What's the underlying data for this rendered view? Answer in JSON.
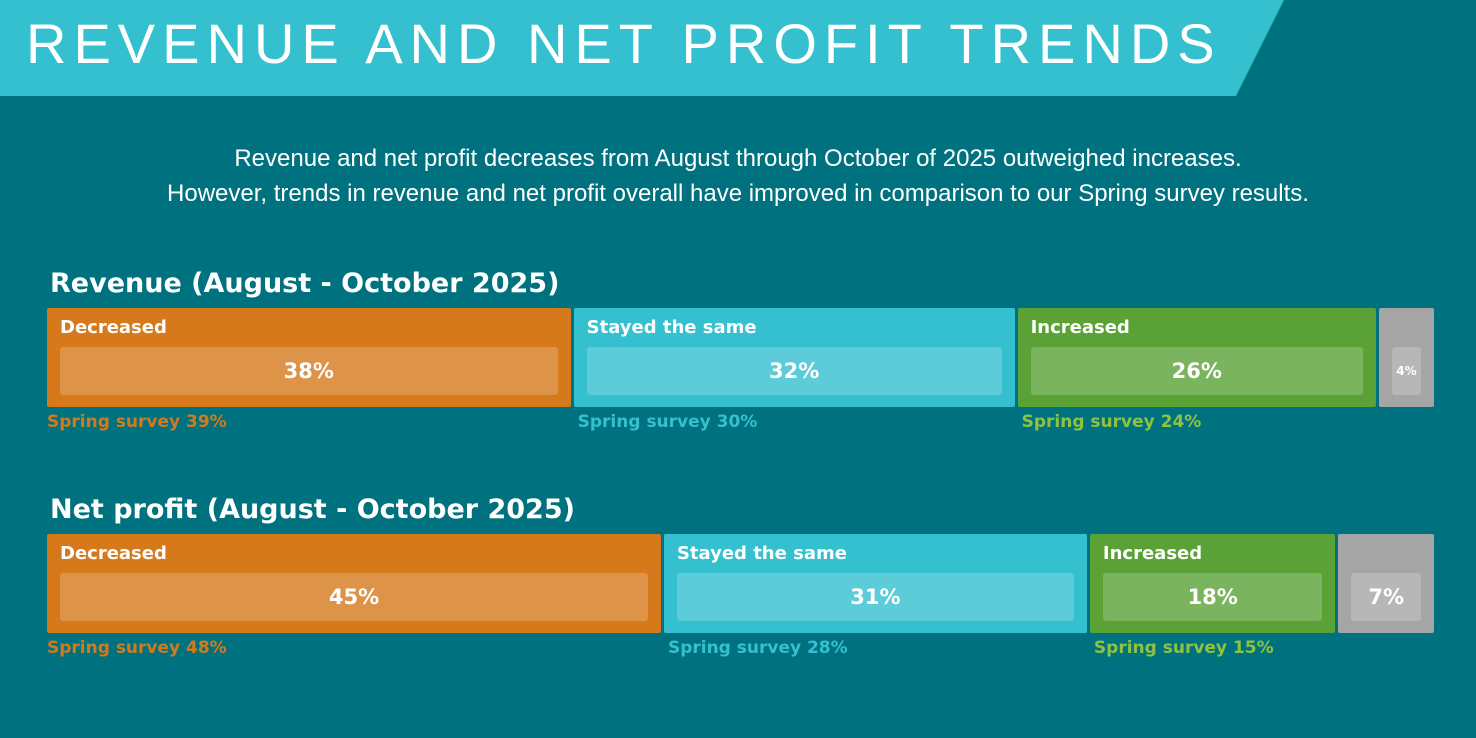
{
  "title": "REVENUE AND NET PROFIT TRENDS",
  "subtitle": [
    "Revenue and net profit decreases from August through October of 2025 outweighed increases.",
    "However, trends in revenue and net profit overall have improved in comparison to our Spring survey results."
  ],
  "colors": {
    "background": "#00727f",
    "banner": "#35c0d0",
    "decreased": "#d5791b",
    "same": "#35c0d0",
    "increased": "#5ba236",
    "other": "#a5a5a5",
    "spring_decreased": "#d5791b",
    "spring_same": "#35c0d0",
    "spring_increased": "#8fc33f"
  },
  "chart_data": [
    {
      "type": "bar",
      "stacked": true,
      "orientation": "horizontal",
      "title": "Revenue (August - October 2025)",
      "categories": [
        "Decreased",
        "Stayed the same",
        "Increased",
        ""
      ],
      "values": [
        38,
        32,
        26,
        4
      ],
      "value_labels": [
        "38%",
        "32%",
        "26%",
        "4%"
      ],
      "spring_labels": [
        "Spring survey 39%",
        "Spring survey 30%",
        "Spring survey 24%",
        ""
      ],
      "spring_values": [
        39,
        30,
        24,
        null
      ]
    },
    {
      "type": "bar",
      "stacked": true,
      "orientation": "horizontal",
      "title": "Net profit (August - October 2025)",
      "categories": [
        "Decreased",
        "Stayed the same",
        "Increased",
        ""
      ],
      "values": [
        45,
        31,
        18,
        7
      ],
      "value_labels": [
        "45%",
        "31%",
        "18%",
        "7%"
      ],
      "spring_labels": [
        "Spring survey 48%",
        "Spring survey 28%",
        "Spring survey 15%",
        ""
      ],
      "spring_values": [
        48,
        28,
        15,
        null
      ]
    }
  ]
}
